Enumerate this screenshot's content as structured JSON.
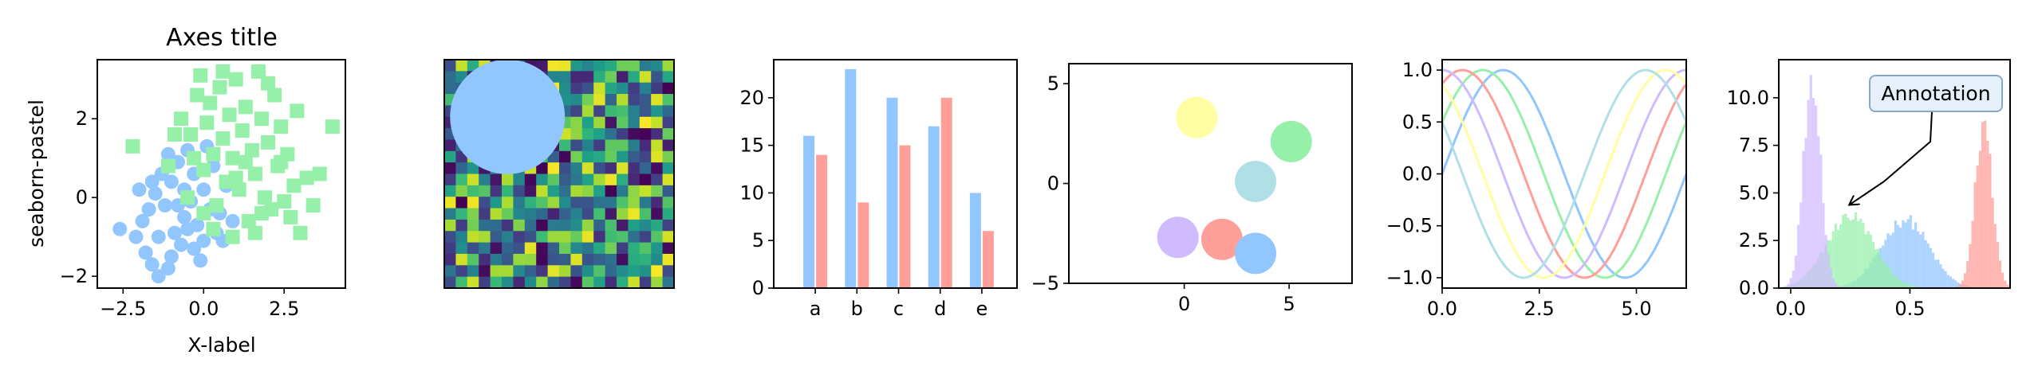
{
  "figure": {
    "style": "seaborn-pastel"
  },
  "colors": {
    "blue": "#92c6ff",
    "green": "#97f0aa",
    "red": "#ff9f9a",
    "purple": "#d0bbff",
    "yellow": "#fffea3",
    "cyan": "#b0e0e6"
  },
  "chart_data": [
    {
      "type": "scatter",
      "title": "Axes title",
      "xlabel": "X-label",
      "ylabel": "seaborn-pastel",
      "xlim": [
        -3.3,
        4.4
      ],
      "ylim": [
        -2.3,
        3.5
      ],
      "xticks": [
        -2.5,
        0.0,
        2.5
      ],
      "xtick_labels": [
        "−2.5",
        "0.0",
        "2.5"
      ],
      "yticks": [
        -2,
        0,
        2
      ],
      "ytick_labels": [
        "−2",
        "0",
        "2"
      ],
      "series": [
        {
          "marker": "circle",
          "color": "blue",
          "points": [
            [
              -2.6,
              -0.8
            ],
            [
              -2.1,
              -1.0
            ],
            [
              -1.8,
              -1.4
            ],
            [
              -1.6,
              -1.7
            ],
            [
              -1.4,
              -2.0
            ],
            [
              -1.1,
              -1.8
            ],
            [
              -1.7,
              -0.3
            ],
            [
              -1.5,
              0.1
            ],
            [
              -1.2,
              -0.2
            ],
            [
              -1.0,
              0.4
            ],
            [
              -0.9,
              -0.9
            ],
            [
              -0.7,
              -1.2
            ],
            [
              -0.6,
              -0.5
            ],
            [
              -0.4,
              -0.1
            ],
            [
              -0.3,
              0.6
            ],
            [
              -0.8,
              0.9
            ],
            [
              -0.5,
              1.2
            ],
            [
              -0.2,
              -0.7
            ],
            [
              0.0,
              -1.1
            ],
            [
              0.2,
              -0.3
            ],
            [
              0.4,
              -0.9
            ],
            [
              0.6,
              -1.1
            ],
            [
              0.9,
              -0.6
            ],
            [
              0.3,
              0.8
            ],
            [
              0.1,
              1.3
            ],
            [
              -1.3,
              0.6
            ],
            [
              -1.9,
              -0.6
            ],
            [
              -1.0,
              -1.5
            ],
            [
              -0.1,
              -1.6
            ],
            [
              -0.6,
              0.2
            ],
            [
              -1.4,
              -1.0
            ],
            [
              -0.3,
              -1.3
            ],
            [
              0.7,
              0.3
            ],
            [
              -2.0,
              0.2
            ],
            [
              -1.1,
              1.1
            ],
            [
              0.5,
              -0.4
            ],
            [
              -0.8,
              -0.2
            ],
            [
              -1.6,
              0.4
            ],
            [
              0.0,
              0.2
            ],
            [
              -0.5,
              -0.8
            ]
          ]
        },
        {
          "marker": "square",
          "color": "green",
          "points": [
            [
              -2.2,
              1.3
            ],
            [
              -1.1,
              0.8
            ],
            [
              -0.7,
              2.0
            ],
            [
              -0.4,
              1.6
            ],
            [
              -0.2,
              2.6
            ],
            [
              -0.1,
              3.1
            ],
            [
              0.0,
              0.7
            ],
            [
              0.1,
              1.9
            ],
            [
              0.2,
              2.4
            ],
            [
              0.3,
              1.1
            ],
            [
              0.4,
              -0.2
            ],
            [
              0.5,
              2.8
            ],
            [
              0.6,
              1.5
            ],
            [
              0.7,
              0.4
            ],
            [
              0.8,
              2.1
            ],
            [
              0.9,
              1.0
            ],
            [
              1.0,
              3.0
            ],
            [
              1.1,
              0.2
            ],
            [
              1.2,
              1.7
            ],
            [
              1.3,
              2.3
            ],
            [
              1.4,
              -0.6
            ],
            [
              1.5,
              1.2
            ],
            [
              1.6,
              0.6
            ],
            [
              1.7,
              3.2
            ],
            [
              1.8,
              2.0
            ],
            [
              1.9,
              0.0
            ],
            [
              2.0,
              1.4
            ],
            [
              2.1,
              -0.3
            ],
            [
              2.2,
              2.6
            ],
            [
              2.3,
              0.8
            ],
            [
              2.4,
              1.8
            ],
            [
              2.5,
              -0.1
            ],
            [
              2.6,
              1.1
            ],
            [
              2.8,
              0.3
            ],
            [
              3.0,
              -0.9
            ],
            [
              3.2,
              0.5
            ],
            [
              3.4,
              -0.2
            ],
            [
              4.0,
              1.8
            ],
            [
              -0.5,
              0.0
            ],
            [
              0.9,
              -1.0
            ],
            [
              1.3,
              0.9
            ],
            [
              0.3,
              -0.8
            ],
            [
              2.9,
              2.2
            ],
            [
              1.6,
              -0.9
            ],
            [
              0.0,
              -0.4
            ],
            [
              -0.3,
              1.0
            ],
            [
              2.7,
              -0.5
            ],
            [
              1.0,
              0.5
            ],
            [
              2.0,
              2.9
            ],
            [
              0.6,
              3.2
            ],
            [
              1.8,
              -0.4
            ],
            [
              2.4,
              0.9
            ],
            [
              3.6,
              0.6
            ],
            [
              -0.9,
              1.6
            ]
          ]
        }
      ]
    },
    {
      "type": "heatmap",
      "rows": 20,
      "cols": 20,
      "colormap": "viridis",
      "seed": 7,
      "overlay": {
        "shape": "circle",
        "color": "blue",
        "cx": 5.5,
        "cy": 5.0,
        "r": 5.0
      }
    },
    {
      "type": "bar",
      "categories": [
        "a",
        "b",
        "c",
        "d",
        "e"
      ],
      "ylim": [
        0,
        24
      ],
      "yticks": [
        0,
        5,
        10,
        15,
        20
      ],
      "series": [
        {
          "color": "blue",
          "values": [
            16,
            23,
            20,
            17,
            10
          ]
        },
        {
          "color": "red",
          "values": [
            14,
            9,
            15,
            20,
            6
          ]
        }
      ]
    },
    {
      "type": "scatter",
      "xlim": [
        -5.5,
        8
      ],
      "ylim": [
        -5,
        6
      ],
      "xticks": [
        0,
        5
      ],
      "xtick_labels": [
        "0",
        "5"
      ],
      "yticks": [
        -5,
        0,
        5
      ],
      "ytick_labels": [
        "−5",
        "0",
        "5"
      ],
      "circles": [
        {
          "x": 0.6,
          "y": 3.3,
          "color": "yellow"
        },
        {
          "x": 5.1,
          "y": 2.1,
          "color": "green"
        },
        {
          "x": 3.4,
          "y": 0.1,
          "color": "cyan"
        },
        {
          "x": -0.3,
          "y": -2.7,
          "color": "purple"
        },
        {
          "x": 1.8,
          "y": -2.8,
          "color": "red"
        },
        {
          "x": 3.4,
          "y": -3.5,
          "color": "blue"
        }
      ]
    },
    {
      "type": "line",
      "xlim": [
        0,
        6.283
      ],
      "ylim": [
        -1.1,
        1.1
      ],
      "xticks": [
        0,
        2.5,
        5.0
      ],
      "xtick_labels": [
        "0.0",
        "2.5",
        "5.0"
      ],
      "yticks": [
        -1.0,
        -0.5,
        0.0,
        0.5,
        1.0
      ],
      "ytick_labels": [
        "−1.0",
        "−0.5",
        "0.0",
        "0.5",
        "1.0"
      ],
      "series": [
        {
          "color": "blue",
          "phase": 0.0
        },
        {
          "color": "green",
          "phase": 0.5236
        },
        {
          "color": "red",
          "phase": 1.0472
        },
        {
          "color": "purple",
          "phase": 1.5708
        },
        {
          "color": "yellow",
          "phase": 2.0944
        },
        {
          "color": "cyan",
          "phase": 2.618
        }
      ]
    },
    {
      "type": "area",
      "xlim": [
        -0.05,
        0.92
      ],
      "ylim": [
        0,
        12
      ],
      "xticks": [
        0.0,
        0.5
      ],
      "xtick_labels": [
        "0.0",
        "0.5"
      ],
      "yticks": [
        0.0,
        2.5,
        5.0,
        7.5,
        10.0
      ],
      "ytick_labels": [
        "0.0",
        "2.5",
        "5.0",
        "7.5",
        "10.0"
      ],
      "histograms": [
        {
          "color": "blue",
          "mean": 0.48,
          "sd": 0.1,
          "peak": 3.6
        },
        {
          "color": "green",
          "mean": 0.25,
          "sd": 0.1,
          "peak": 3.8
        },
        {
          "color": "red",
          "mean": 0.81,
          "sd": 0.036,
          "peak": 8.6
        },
        {
          "color": "purple",
          "mean": 0.09,
          "sd": 0.036,
          "peak": 11.2
        }
      ],
      "annotation": {
        "text": "Annotation",
        "x": 0.25,
        "y": 4.4
      }
    }
  ]
}
